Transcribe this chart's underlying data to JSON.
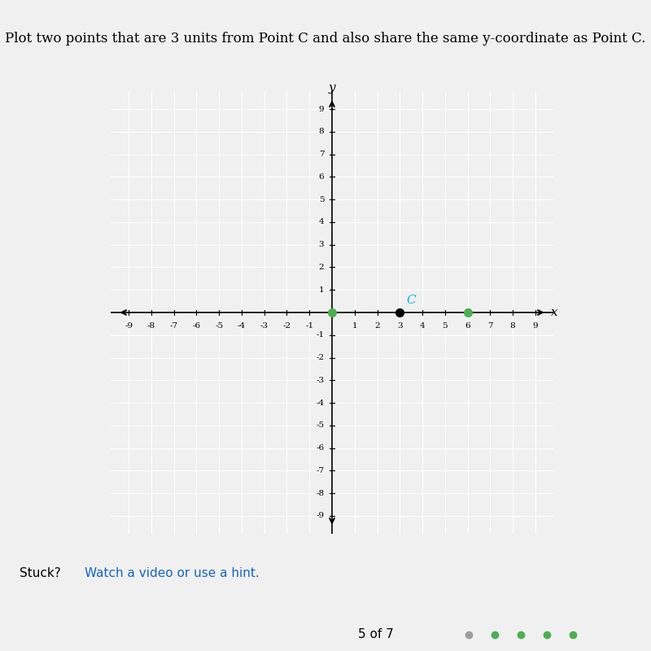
{
  "title": "Plot two points that are 3 units from Point C and also share the same y-coordinate as Point C.",
  "title_italic_parts": [
    "C",
    "y",
    "C"
  ],
  "grid_range": [
    -9,
    9
  ],
  "point_C": [
    3,
    0
  ],
  "point_C_label": "C",
  "plotted_points": [
    [
      0,
      0
    ],
    [
      6,
      0
    ]
  ],
  "point_C_color": "#000000",
  "plotted_color": "#4CAF50",
  "label_C_color": "#00BCD4",
  "background_color": "#f5f5f5",
  "plot_bg_color": "#e8e8e8",
  "axis_label_x": "x",
  "axis_label_y": "y",
  "stuck_text": "Stuck?",
  "hint_text": "Watch a video or use a hint.",
  "progress_text": "5 of 7"
}
